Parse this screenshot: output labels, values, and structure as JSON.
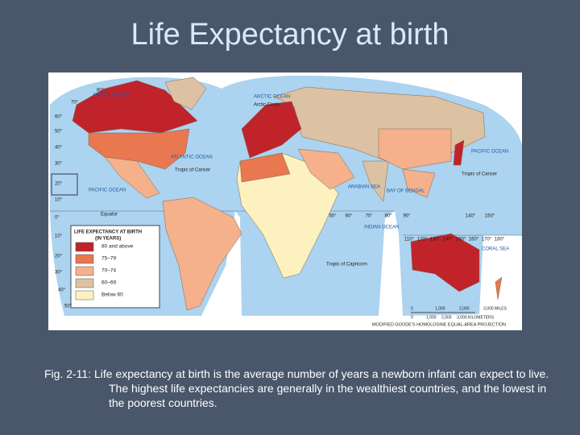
{
  "title": "Life Expectancy at birth",
  "map": {
    "legend_title": "LIFE EXPECTANCY AT BIRTH",
    "legend_subtitle": "(IN YEARS)",
    "legend": [
      {
        "label": "80 and above",
        "color": "#c1232b"
      },
      {
        "label": "75–79",
        "color": "#e9774f"
      },
      {
        "label": "70–74",
        "color": "#f5b08c"
      },
      {
        "label": "60–69",
        "color": "#dcc2a2"
      },
      {
        "label": "Below 60",
        "color": "#fdf2bf"
      }
    ],
    "labels": [
      "ARCTIC OCEAN",
      "ARCTIC OCEAN",
      "Arctic Circle",
      "ATLANTIC OCEAN",
      "PACIFIC OCEAN",
      "PACIFIC OCEAN",
      "INDIAN OCEAN",
      "Tropic of Cancer",
      "Tropic of Cancer",
      "Equator",
      "Tropic of Capricorn",
      "ARABIAN SEA",
      "BAY OF BENGAL",
      "CORAL SEA"
    ],
    "latitudes": [
      "80°",
      "70°",
      "60°",
      "50°",
      "40°",
      "30°",
      "20°",
      "10°",
      "0°",
      "10°",
      "20°",
      "30°",
      "40°",
      "50°"
    ],
    "longitudes": [
      "50°",
      "60°",
      "70°",
      "80°",
      "90°",
      "140°",
      "150°"
    ],
    "south_longitudes": [
      "110°",
      "120°",
      "130°",
      "140°",
      "150°",
      "160°",
      "170°",
      "180°"
    ],
    "scale_miles": [
      "0",
      "1,000",
      "2,000",
      "3,000 MILES"
    ],
    "scale_km": [
      "0",
      "1,000",
      "2,000",
      "3,000 KILOMETERS"
    ],
    "projection": "MODIFIED GOODE'S HOMOLOSINE EQUAL-AREA PROJECTION"
  },
  "caption": "Fig. 2-11:  Life expectancy at birth is the average number of years a newborn infant can expect to live.  The highest life expectancies are generally in the wealthiest countries, and the lowest in the poorest countries."
}
